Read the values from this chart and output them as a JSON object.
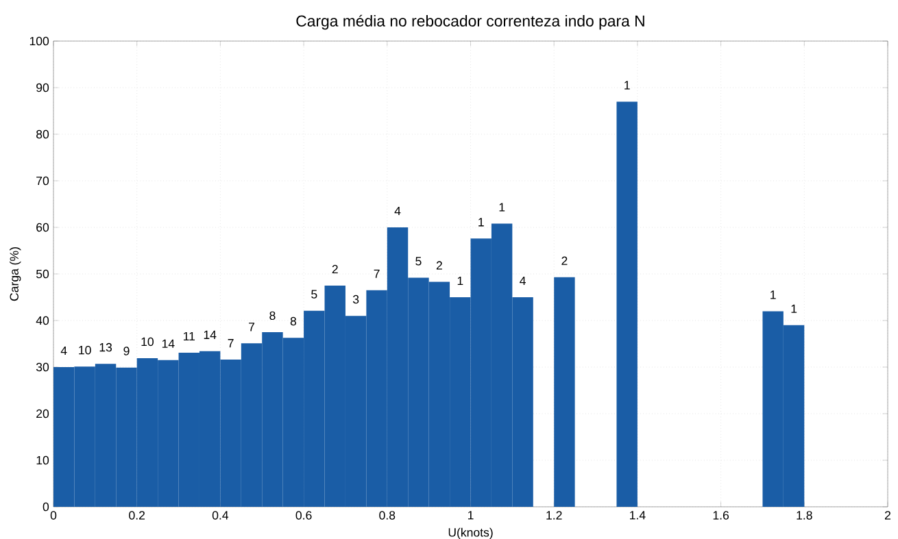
{
  "chart_data": {
    "type": "histogram",
    "title": "Carga média no rebocador correnteza indo para N",
    "xlabel": "U(knots)",
    "ylabel": "Carga (%)",
    "bins": [
      0,
      0.05,
      0.1,
      0.15,
      0.2,
      0.25,
      0.3,
      0.35,
      0.4,
      0.45,
      0.5,
      0.55,
      0.6,
      0.65,
      0.7,
      0.75,
      0.8,
      0.85,
      0.9,
      0.95,
      1.0,
      1.05,
      1.1,
      1.15,
      1.2,
      1.25,
      1.3,
      1.35,
      1.4,
      1.45,
      1.5,
      1.55,
      1.6,
      1.65,
      1.7,
      1.75,
      1.8
    ],
    "values": [
      30,
      30.1,
      30.7,
      29.9,
      31.9,
      31.5,
      33.1,
      33.4,
      31.6,
      35.1,
      37.5,
      36.3,
      42.1,
      47.5,
      41,
      46.5,
      60,
      49.2,
      48.3,
      45,
      57.6,
      60.8,
      45,
      0,
      49.3,
      0,
      0,
      87,
      0,
      0,
      0,
      0,
      0,
      0,
      42,
      39
    ],
    "annotations": [
      {
        "text": "4",
        "x": 0.025,
        "y": 30
      },
      {
        "text": "10",
        "x": 0.075,
        "y": 30.1
      },
      {
        "text": "13",
        "x": 0.125,
        "y": 30.7
      },
      {
        "text": "9",
        "x": 0.175,
        "y": 29.9
      },
      {
        "text": "10",
        "x": 0.225,
        "y": 31.9
      },
      {
        "text": "14",
        "x": 0.275,
        "y": 31.5
      },
      {
        "text": "11",
        "x": 0.325,
        "y": 33.1
      },
      {
        "text": "14",
        "x": 0.375,
        "y": 33.4
      },
      {
        "text": "7",
        "x": 0.425,
        "y": 31.6
      },
      {
        "text": "7",
        "x": 0.475,
        "y": 35.1
      },
      {
        "text": "8",
        "x": 0.525,
        "y": 37.5
      },
      {
        "text": "8",
        "x": 0.575,
        "y": 36.3
      },
      {
        "text": "5",
        "x": 0.625,
        "y": 42.1
      },
      {
        "text": "2",
        "x": 0.675,
        "y": 47.5
      },
      {
        "text": "3",
        "x": 0.725,
        "y": 41
      },
      {
        "text": "7",
        "x": 0.775,
        "y": 46.5
      },
      {
        "text": "4",
        "x": 0.825,
        "y": 60
      },
      {
        "text": "5",
        "x": 0.875,
        "y": 49.2
      },
      {
        "text": "2",
        "x": 0.925,
        "y": 48.3
      },
      {
        "text": "1",
        "x": 0.975,
        "y": 45
      },
      {
        "text": "1",
        "x": 1.025,
        "y": 57.6
      },
      {
        "text": "1",
        "x": 1.075,
        "y": 60.8
      },
      {
        "text": "4",
        "x": 1.125,
        "y": 45
      },
      {
        "text": "2",
        "x": 1.225,
        "y": 49.3
      },
      {
        "text": "1",
        "x": 1.375,
        "y": 87
      },
      {
        "text": "1",
        "x": 1.725,
        "y": 42
      },
      {
        "text": "1",
        "x": 1.775,
        "y": 39
      }
    ],
    "color": "#1a5da6",
    "xlim": [
      0,
      2
    ],
    "xticks": [
      0,
      0.2,
      0.4,
      0.6,
      0.8,
      1,
      1.2,
      1.4,
      1.6,
      1.8,
      2
    ],
    "ylim": [
      0,
      100
    ],
    "yticks": [
      0,
      10,
      20,
      30,
      40,
      50,
      60,
      70,
      80,
      90,
      100
    ],
    "grid": true
  }
}
